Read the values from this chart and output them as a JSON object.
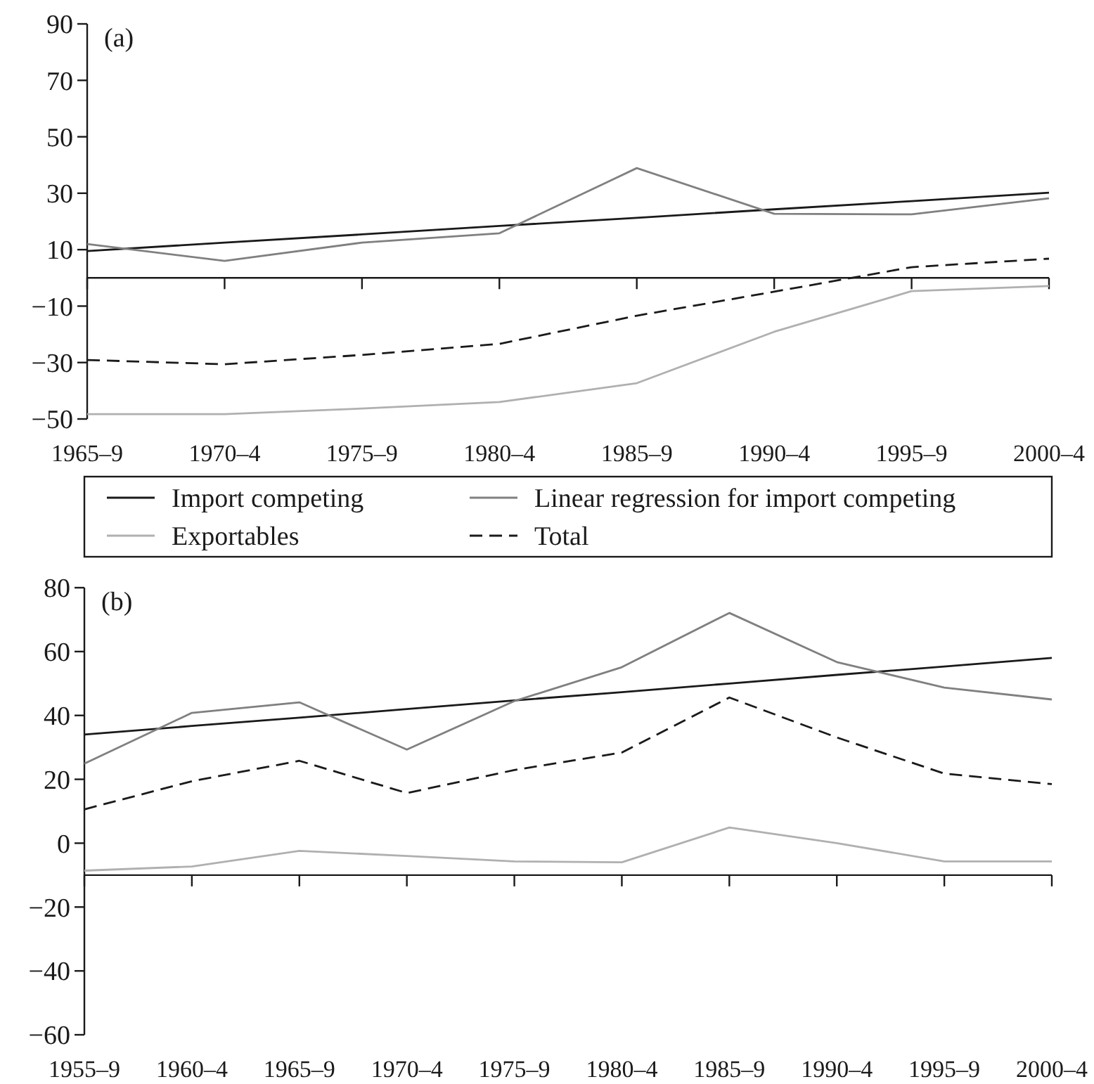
{
  "chart_data": [
    {
      "type": "line",
      "title": "(a)",
      "categories": [
        "1965–9",
        "1970–4",
        "1975–9",
        "1980–4",
        "1985–9",
        "1990–4",
        "1995–9",
        "2000–4"
      ],
      "ylim": [
        -50,
        90
      ],
      "yticks": [
        -50,
        -30,
        -10,
        10,
        30,
        50,
        70,
        90
      ],
      "ref_lines": [
        {
          "axis": "y",
          "value": 0,
          "color": "#1a1a1a"
        }
      ],
      "legend": "bottom",
      "series": [
        {
          "name": "Import competing",
          "color": "#1a1a1a",
          "values": [
            9.5,
            12.5,
            15.4,
            18.4,
            21.3,
            24.3,
            27.2,
            30.2
          ]
        },
        {
          "name": "Linear regression for import competing",
          "color": "#808080",
          "values": [
            12.0,
            6.0,
            12.5,
            15.8,
            38.9,
            22.7,
            22.5,
            28.2
          ]
        },
        {
          "name": "Exportables",
          "color": "#b0b0b0",
          "values": [
            -48.3,
            -48.3,
            -46.3,
            -44.0,
            -37.3,
            -19.1,
            -4.7,
            -2.9
          ]
        },
        {
          "name": "Total",
          "color": "#1a1a1a",
          "line_style": "dashed",
          "values": [
            -29.1,
            -30.6,
            -27.3,
            -23.4,
            -13.4,
            -4.9,
            3.8,
            6.8
          ]
        }
      ]
    },
    {
      "type": "line",
      "title": "(b)",
      "categories": [
        "1955–9",
        "1960–4",
        "1965–9",
        "1970–4",
        "1975–9",
        "1980–4",
        "1985–9",
        "1990–4",
        "1995–9",
        "2000–4"
      ],
      "ylim": [
        -60,
        80
      ],
      "yticks": [
        -60,
        -40,
        -20,
        0,
        20,
        40,
        60,
        80
      ],
      "ref_lines": [
        {
          "axis": "y",
          "value": -10,
          "color": "#1a1a1a"
        }
      ],
      "series": [
        {
          "color": "#1a1a1a",
          "values": [
            34.0,
            36.7,
            39.3,
            42.0,
            44.7,
            47.3,
            50.0,
            52.7,
            55.3,
            58.0
          ]
        },
        {
          "color": "#808080",
          "values": [
            24.9,
            40.8,
            44.1,
            29.3,
            44.5,
            55.1,
            72.1,
            56.7,
            48.7,
            45.0
          ]
        },
        {
          "color": "#b0b0b0",
          "values": [
            -8.6,
            -7.3,
            -2.4,
            -4.0,
            -5.7,
            -6.0,
            4.9,
            0,
            -5.7,
            -5.7
          ]
        },
        {
          "color": "#1a1a1a",
          "line_style": "dashed",
          "values": [
            10.6,
            19.4,
            25.8,
            15.7,
            22.9,
            28.4,
            45.6,
            33.1,
            21.8,
            18.5
          ]
        }
      ]
    }
  ]
}
